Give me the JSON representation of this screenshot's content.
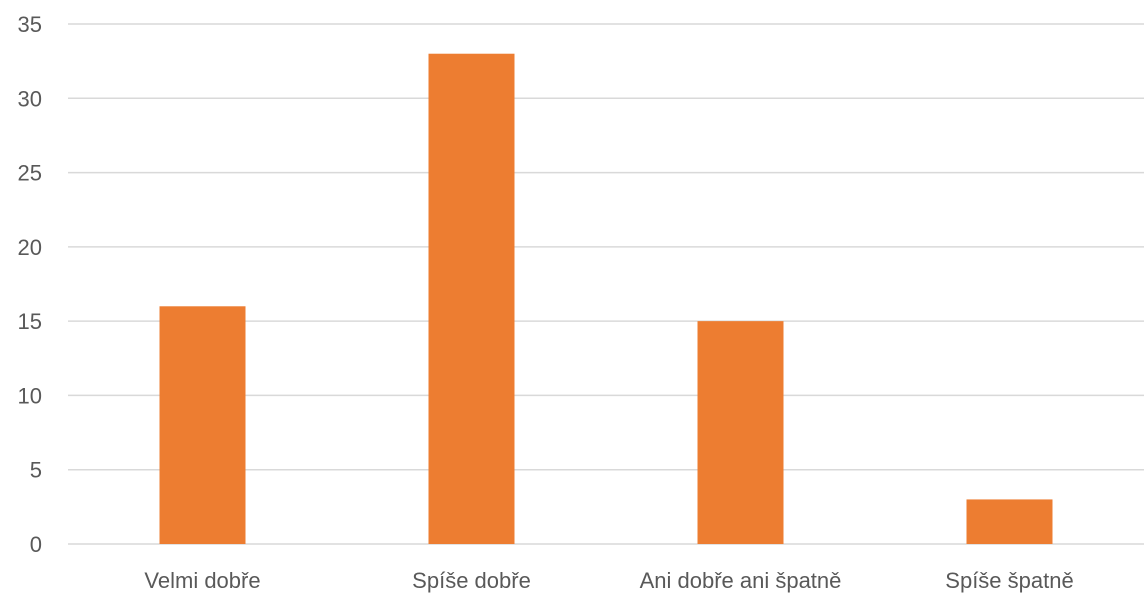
{
  "chart_data": {
    "type": "bar",
    "title": "",
    "xlabel": "",
    "ylabel": "",
    "categories": [
      "Velmi dobře",
      "Spíše dobře",
      "Ani dobře ani špatně",
      "Spíše špatně"
    ],
    "values": [
      16,
      33,
      15,
      3
    ],
    "ylim": [
      0,
      35
    ],
    "yticks": [
      0,
      5,
      10,
      15,
      20,
      25,
      30,
      35
    ],
    "ytick_labels": [
      "0",
      "5",
      "10",
      "15",
      "20",
      "25",
      "30",
      "35"
    ],
    "grid": true,
    "legend": "none",
    "colors": {
      "bar": "#ED7D31",
      "gridline": "#D9D9D9",
      "text": "#595959"
    }
  }
}
